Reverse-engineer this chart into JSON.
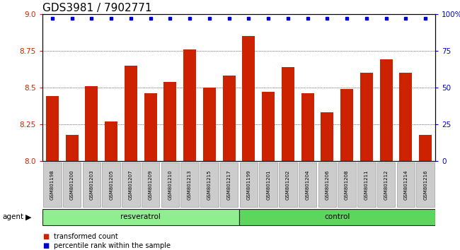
{
  "title": "GDS3981 / 7902771",
  "samples": [
    "GSM801198",
    "GSM801200",
    "GSM801203",
    "GSM801205",
    "GSM801207",
    "GSM801209",
    "GSM801210",
    "GSM801213",
    "GSM801215",
    "GSM801217",
    "GSM801199",
    "GSM801201",
    "GSM801202",
    "GSM801204",
    "GSM801206",
    "GSM801208",
    "GSM801211",
    "GSM801212",
    "GSM801214",
    "GSM801216"
  ],
  "bar_values": [
    8.44,
    8.18,
    8.51,
    8.27,
    8.65,
    8.46,
    8.54,
    8.76,
    8.5,
    8.58,
    8.85,
    8.47,
    8.64,
    8.46,
    8.33,
    8.49,
    8.6,
    8.69,
    8.6,
    8.18
  ],
  "percentile_values": [
    97,
    97,
    97,
    97,
    97,
    97,
    97,
    97,
    97,
    97,
    97,
    97,
    97,
    97,
    97,
    97,
    97,
    97,
    97,
    97
  ],
  "groups": [
    {
      "label": "resveratrol",
      "start": 0,
      "end": 10,
      "color": "#90EE90"
    },
    {
      "label": "control",
      "start": 10,
      "end": 20,
      "color": "#5CD65C"
    }
  ],
  "group_row_label": "agent",
  "bar_color": "#CC2200",
  "dot_color": "#0000CC",
  "ylim_left": [
    8.0,
    9.0
  ],
  "ylim_right": [
    0,
    100
  ],
  "yticks_left": [
    8.0,
    8.25,
    8.5,
    8.75,
    9.0
  ],
  "yticks_right": [
    0,
    25,
    50,
    75,
    100
  ],
  "legend_items": [
    {
      "label": "transformed count",
      "color": "#CC2200"
    },
    {
      "label": "percentile rank within the sample",
      "color": "#0000CC"
    }
  ],
  "background_color": "#ffffff",
  "plot_bg_color": "#ffffff",
  "cell_bg": "#cccccc",
  "title_fontsize": 11,
  "tick_fontsize": 7.5,
  "label_fontsize": 6.0
}
